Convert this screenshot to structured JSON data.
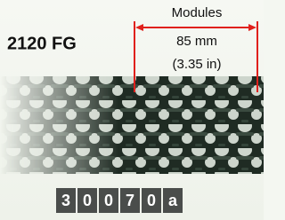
{
  "title": "2120 FG",
  "dimension": {
    "label": "Modules",
    "metric": "85 mm",
    "imperial": "(3.35 in)"
  },
  "code": [
    "3",
    "0",
    "0",
    "7",
    "0",
    "a"
  ]
}
